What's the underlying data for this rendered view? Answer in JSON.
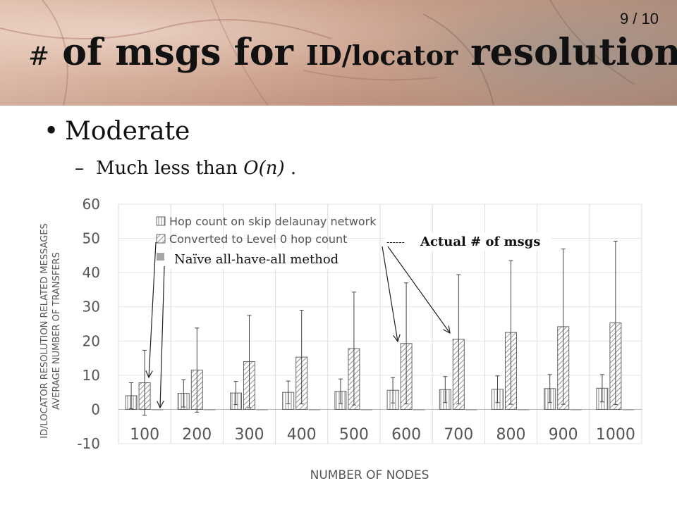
{
  "slide": {
    "page_number": "9 / 10",
    "title_hash": "#",
    "title_of": " of msgs for ",
    "title_idloc": "ID/locator",
    "title_res": " resolution",
    "bullet_main": "Moderate",
    "bullet_sub_prefix": "Much less than ",
    "bullet_sub_italic": "O(n)",
    "bullet_sub_suffix": " ."
  },
  "chart_data": {
    "type": "bar",
    "xlabel": "NUMBER OF NODES",
    "ylabel_line1": "ID/LOCATOR RESOLUTION RELATED MESSAGES",
    "ylabel_line2": "AVERAGE NUMBER OF TRANSFERS",
    "categories": [
      "100",
      "200",
      "300",
      "400",
      "500",
      "600",
      "700",
      "800",
      "900",
      "1000"
    ],
    "ylim": [
      -10,
      60
    ],
    "yticks": [
      -10,
      0,
      10,
      20,
      30,
      40,
      50,
      60
    ],
    "legend_position": "top-left",
    "series": [
      {
        "name": "Hop count on skip delaunay network",
        "pattern": "vertical",
        "values": [
          4.0,
          4.7,
          4.8,
          5.0,
          5.3,
          5.6,
          5.8,
          5.9,
          6.1,
          6.2
        ],
        "error": [
          3.8,
          4.0,
          3.4,
          3.3,
          3.6,
          3.7,
          3.8,
          3.9,
          4.1,
          4.0
        ]
      },
      {
        "name": "Converted to Level 0 hop count",
        "pattern": "diagonal",
        "values": [
          7.8,
          11.5,
          14.0,
          15.3,
          17.8,
          19.3,
          20.5,
          22.5,
          24.2,
          25.3
        ],
        "error": [
          9.5,
          12.3,
          13.5,
          13.7,
          16.5,
          17.7,
          18.9,
          21.0,
          22.7,
          23.9
        ]
      },
      {
        "name": "Naïve all-have-all method",
        "pattern": "solid",
        "values": [
          0,
          0,
          0,
          0,
          0,
          0,
          0,
          0,
          0,
          0
        ]
      }
    ],
    "annotations": {
      "actual_label": "Actual # of msgs",
      "actual_dashes": "------",
      "naive_label": "Naïve all-have-all method"
    }
  }
}
